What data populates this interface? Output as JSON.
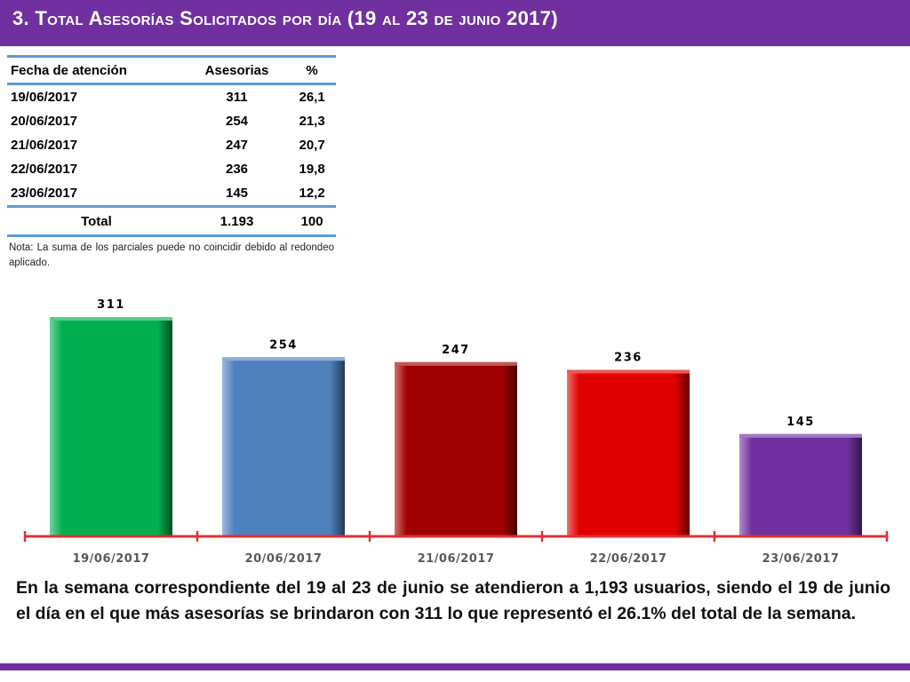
{
  "slide": {
    "title": "3.  Total Asesorías Solicitados por día  (19 al 23 de junio 2017)"
  },
  "table": {
    "headers": [
      "Fecha de atención",
      "Asesorias",
      "%"
    ],
    "rows": [
      [
        "19/06/2017",
        "311",
        "26,1"
      ],
      [
        "20/06/2017",
        "254",
        "21,3"
      ],
      [
        "21/06/2017",
        "247",
        "20,7"
      ],
      [
        "22/06/2017",
        "236",
        "19,8"
      ],
      [
        "23/06/2017",
        "145",
        "12,2"
      ]
    ],
    "total": [
      "Total",
      "1.193",
      "100"
    ]
  },
  "note": "Nota: La suma de los parciales puede no coincidir debido al redondeo aplicado.",
  "chart_data": {
    "type": "bar",
    "categories": [
      "19/06/2017",
      "20/06/2017",
      "21/06/2017",
      "22/06/2017",
      "23/06/2017"
    ],
    "values": [
      311,
      254,
      247,
      236,
      145
    ],
    "data_labels": [
      "311",
      "254",
      "247",
      "236",
      "145"
    ],
    "colors": [
      "#00b050",
      "#4f81bd",
      "#a00000",
      "#e00000",
      "#7030a0"
    ],
    "axis_color": "#e03030",
    "grid": false,
    "legend": "none",
    "ylim": [
      0,
      311
    ]
  },
  "summary": "En la semana correspondiente del 19 al 23 de junio se atendieron a 1,193 usuarios, siendo el 19 de junio el día en el que más asesorías se brindaron con 311 lo que representó el 26.1% del total de la semana.",
  "theme": {
    "accent": "#7030a0",
    "table_rule": "#5b9bd5"
  }
}
